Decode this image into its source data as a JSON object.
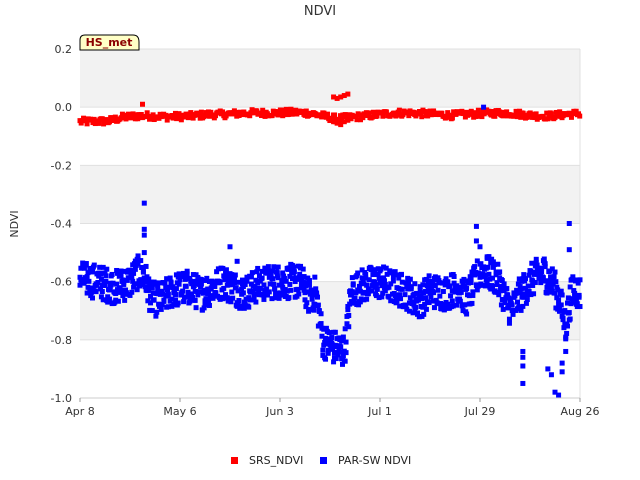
{
  "chart_data": {
    "type": "scatter",
    "title": "NDVI",
    "xlabel": "",
    "ylabel": "NDVI",
    "badge": "HS_met",
    "ylim": [
      -1.0,
      0.2
    ],
    "yticks": [
      0.2,
      0.0,
      -0.2,
      -0.4,
      -0.6,
      -0.8,
      -1.0
    ],
    "ytick_labels": [
      "0.2",
      "0.0",
      "-0.2",
      "-0.4",
      "-0.6",
      "-0.8",
      "-1.0"
    ],
    "xlim_days": [
      0,
      140
    ],
    "xticks": [
      {
        "day": 0,
        "label": "Apr 8"
      },
      {
        "day": 28,
        "label": "May 6"
      },
      {
        "day": 56,
        "label": "Jun 3"
      },
      {
        "day": 84,
        "label": "Jul 1"
      },
      {
        "day": 112,
        "label": "Jul 29"
      },
      {
        "day": 140,
        "label": "Aug 26"
      }
    ],
    "grid": "horizontal bands",
    "legend_position": "bottom-center",
    "series": [
      {
        "name": "SRS_NDVI",
        "color": "#ff0000",
        "base_points": [
          [
            0,
            -0.05
          ],
          [
            8,
            -0.048
          ],
          [
            12,
            -0.035
          ],
          [
            16,
            -0.03
          ],
          [
            20,
            -0.03
          ],
          [
            24,
            -0.033
          ],
          [
            28,
            -0.032
          ],
          [
            32,
            -0.03
          ],
          [
            36,
            -0.025
          ],
          [
            40,
            -0.025
          ],
          [
            44,
            -0.022
          ],
          [
            48,
            -0.02
          ],
          [
            52,
            -0.02
          ],
          [
            56,
            -0.02
          ],
          [
            60,
            -0.018
          ],
          [
            64,
            -0.02
          ],
          [
            68,
            -0.03
          ],
          [
            72,
            -0.04
          ],
          [
            76,
            -0.035
          ],
          [
            80,
            -0.03
          ],
          [
            84,
            -0.025
          ],
          [
            88,
            -0.02
          ],
          [
            92,
            -0.02
          ],
          [
            96,
            -0.022
          ],
          [
            100,
            -0.025
          ],
          [
            104,
            -0.028
          ],
          [
            108,
            -0.025
          ],
          [
            112,
            -0.022
          ],
          [
            116,
            -0.02
          ],
          [
            120,
            -0.02
          ],
          [
            124,
            -0.025
          ],
          [
            128,
            -0.03
          ],
          [
            132,
            -0.03
          ],
          [
            136,
            -0.025
          ],
          [
            140,
            -0.022
          ]
        ],
        "extra_points": [
          [
            17.5,
            0.01
          ],
          [
            71,
            0.035
          ],
          [
            72,
            0.03
          ],
          [
            73,
            0.035
          ],
          [
            74,
            0.04
          ],
          [
            75,
            0.045
          ],
          [
            71,
            -0.05
          ],
          [
            72,
            -0.055
          ],
          [
            73,
            -0.06
          ],
          [
            74,
            -0.05
          ],
          [
            75,
            -0.045
          ]
        ]
      },
      {
        "name": "PAR-SW NDVI",
        "color": "#0000ff",
        "base_points": [
          [
            0,
            -0.59
          ],
          [
            5,
            -0.6
          ],
          [
            10,
            -0.62
          ],
          [
            14,
            -0.6
          ],
          [
            16,
            -0.57
          ],
          [
            18,
            -0.58
          ],
          [
            20,
            -0.66
          ],
          [
            23,
            -0.66
          ],
          [
            26,
            -0.63
          ],
          [
            30,
            -0.62
          ],
          [
            34,
            -0.64
          ],
          [
            37,
            -0.62
          ],
          [
            40,
            -0.6
          ],
          [
            43,
            -0.62
          ],
          [
            46,
            -0.64
          ],
          [
            50,
            -0.61
          ],
          [
            54,
            -0.6
          ],
          [
            58,
            -0.6
          ],
          [
            62,
            -0.6
          ],
          [
            64,
            -0.65
          ],
          [
            66,
            -0.64
          ],
          [
            68,
            -0.8
          ],
          [
            70,
            -0.82
          ],
          [
            74,
            -0.84
          ],
          [
            76,
            -0.63
          ],
          [
            80,
            -0.61
          ],
          [
            84,
            -0.6
          ],
          [
            88,
            -0.62
          ],
          [
            92,
            -0.64
          ],
          [
            95,
            -0.67
          ],
          [
            98,
            -0.63
          ],
          [
            102,
            -0.64
          ],
          [
            106,
            -0.62
          ],
          [
            108,
            -0.66
          ],
          [
            110,
            -0.62
          ],
          [
            112,
            -0.56
          ],
          [
            114,
            -0.57
          ],
          [
            116,
            -0.58
          ],
          [
            118,
            -0.62
          ],
          [
            119,
            -0.66
          ],
          [
            121,
            -0.7
          ],
          [
            123,
            -0.65
          ],
          [
            126,
            -0.6
          ],
          [
            128,
            -0.58
          ],
          [
            130,
            -0.57
          ],
          [
            132,
            -0.6
          ],
          [
            134,
            -0.65
          ],
          [
            136,
            -0.75
          ],
          [
            138,
            -0.62
          ],
          [
            140,
            -0.64
          ]
        ],
        "extra_points": [
          [
            18,
            -0.33
          ],
          [
            18,
            -0.42
          ],
          [
            18,
            -0.44
          ],
          [
            18,
            -0.5
          ],
          [
            42,
            -0.48
          ],
          [
            44,
            -0.53
          ],
          [
            111,
            -0.41
          ],
          [
            111,
            -0.46
          ],
          [
            112,
            -0.48
          ],
          [
            114,
            -0.52
          ],
          [
            124,
            -0.84
          ],
          [
            124,
            -0.86
          ],
          [
            124,
            -0.89
          ],
          [
            124,
            -0.95
          ],
          [
            137,
            -0.4
          ],
          [
            137,
            -0.49
          ],
          [
            136,
            -0.84
          ],
          [
            135,
            -0.88
          ],
          [
            135,
            -0.91
          ],
          [
            134,
            -0.99
          ],
          [
            133,
            -0.98
          ],
          [
            131,
            -0.9
          ],
          [
            132,
            -0.92
          ],
          [
            113,
            0.0
          ]
        ]
      }
    ]
  }
}
